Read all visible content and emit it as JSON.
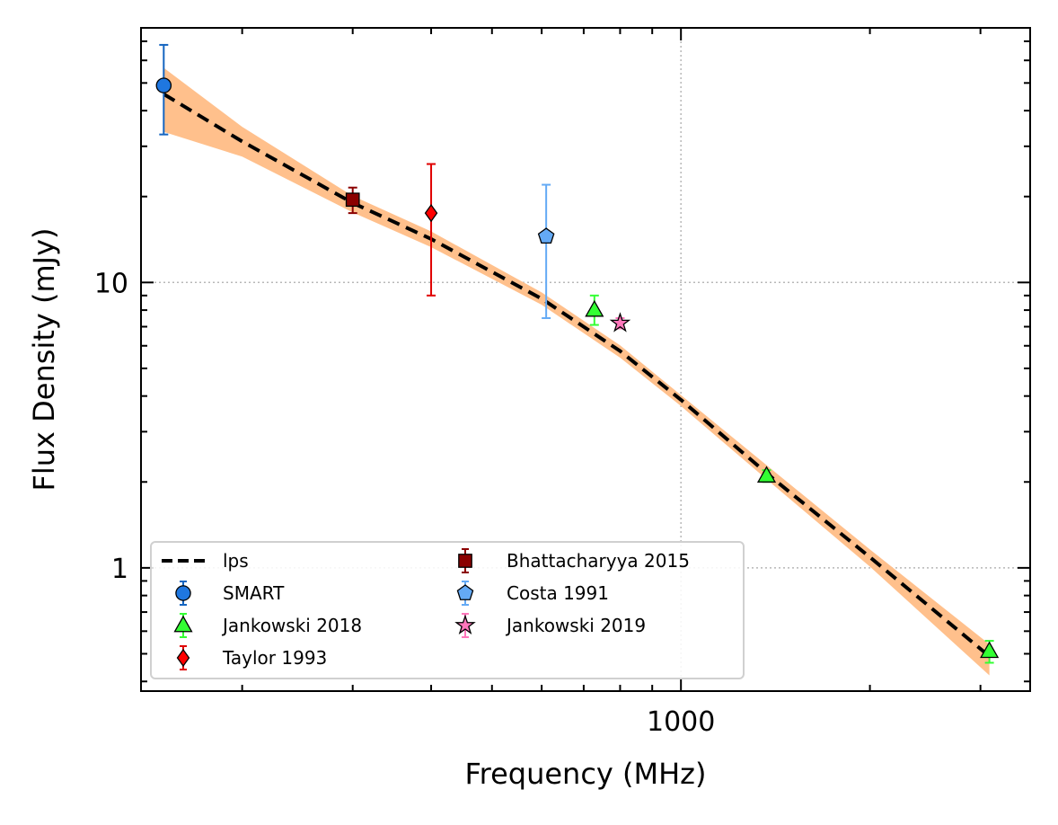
{
  "chart_data": {
    "type": "scatter",
    "title": "",
    "xlabel": "Frequency (MHz)",
    "ylabel": "Flux Density (mJy)",
    "xscale": "log",
    "yscale": "log",
    "xlim": [
      138,
      3600
    ],
    "ylim": [
      0.37,
      78
    ],
    "grid": true,
    "legend_position": "lower-left",
    "x_tick_labels": [
      {
        "value": 1000,
        "label": "1000"
      }
    ],
    "y_tick_labels": [
      {
        "value": 10,
        "label": "10"
      },
      {
        "value": 1,
        "label": "1"
      }
    ],
    "fit": {
      "name": "lps",
      "color": "#000000",
      "band_color": "#ffc08c",
      "points": [
        {
          "x": 150,
          "y": 45.7,
          "lo": 33.7,
          "hi": 56.5
        },
        {
          "x": 200,
          "y": 31.2,
          "lo": 27.6,
          "hi": 35.1
        },
        {
          "x": 300,
          "y": 19.0,
          "lo": 17.6,
          "hi": 20.1
        },
        {
          "x": 400,
          "y": 14.2,
          "lo": 13.3,
          "hi": 15.1
        },
        {
          "x": 600,
          "y": 8.77,
          "lo": 8.35,
          "hi": 9.23
        },
        {
          "x": 800,
          "y": 5.75,
          "lo": 5.45,
          "hi": 6.02
        },
        {
          "x": 1000,
          "y": 3.88,
          "lo": 3.69,
          "hi": 4.03
        },
        {
          "x": 1400,
          "y": 2.06,
          "lo": 1.96,
          "hi": 2.2
        },
        {
          "x": 2000,
          "y": 1.09,
          "lo": 1.01,
          "hi": 1.16
        },
        {
          "x": 3100,
          "y": 0.49,
          "lo": 0.42,
          "hi": 0.54
        }
      ]
    },
    "series": [
      {
        "name": "SMART",
        "marker": "circle",
        "face": "#1f77e0",
        "err_color": "#1565c0",
        "points": [
          {
            "x": 150,
            "y": 49,
            "lo": 33,
            "hi": 68
          }
        ]
      },
      {
        "name": "Jankowski 2018",
        "marker": "triangle",
        "face": "#33ff33",
        "err_color": "#33ff33",
        "points": [
          {
            "x": 728,
            "y": 8.0,
            "lo": 7.1,
            "hi": 9.0
          },
          {
            "x": 1369,
            "y": 2.1,
            "lo": 2.0,
            "hi": 2.2
          },
          {
            "x": 3100,
            "y": 0.51,
            "lo": 0.465,
            "hi": 0.555
          }
        ]
      },
      {
        "name": "Taylor 1993",
        "marker": "diamond",
        "face": "#ff0000",
        "err_color": "#e00000",
        "points": [
          {
            "x": 400,
            "y": 17.5,
            "lo": 9,
            "hi": 26
          }
        ]
      },
      {
        "name": "Bhattacharyya 2015",
        "marker": "square",
        "face": "#8b0000",
        "err_color": "#8b0000",
        "points": [
          {
            "x": 300,
            "y": 19.5,
            "lo": 17.5,
            "hi": 21.5
          }
        ]
      },
      {
        "name": "Costa 1991",
        "marker": "pentagon",
        "face": "#64aaf5",
        "err_color": "#64aaf5",
        "points": [
          {
            "x": 610,
            "y": 14.5,
            "lo": 7.5,
            "hi": 22
          }
        ]
      },
      {
        "name": "Jankowski 2019",
        "marker": "star",
        "face": "#ff77bb",
        "err_color": "#ff77bb",
        "points": [
          {
            "x": 800,
            "y": 7.2,
            "lo": 6.9,
            "hi": 7.5
          }
        ]
      }
    ]
  }
}
